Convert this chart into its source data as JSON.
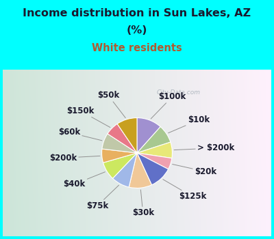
{
  "title_line1": "Income distribution in Sun Lakes, AZ",
  "title_line2": "(%)",
  "subtitle": "White residents",
  "title_color": "#1a1a2e",
  "subtitle_color": "#b05a2f",
  "bg_top_color": "#00FFFF",
  "watermark": "City-Data.com",
  "slices": [
    {
      "label": "$100k",
      "value": 11,
      "color": "#a090d0"
    },
    {
      "label": "$10k",
      "value": 8,
      "color": "#a8c890"
    },
    {
      "label": "> $200k",
      "value": 7,
      "color": "#e8e878"
    },
    {
      "label": "$20k",
      "value": 5,
      "color": "#f0a0b0"
    },
    {
      "label": "$125k",
      "value": 10,
      "color": "#6070c8"
    },
    {
      "label": "$30k",
      "value": 10,
      "color": "#f0c898"
    },
    {
      "label": "$75k",
      "value": 8,
      "color": "#a0b8e8"
    },
    {
      "label": "$40k",
      "value": 8,
      "color": "#cce860"
    },
    {
      "label": "$200k",
      "value": 6,
      "color": "#e8b060"
    },
    {
      "label": "$60k",
      "value": 7,
      "color": "#c0c8a8"
    },
    {
      "label": "$150k",
      "value": 6,
      "color": "#e87888"
    },
    {
      "label": "$50k",
      "value": 9,
      "color": "#c8a020"
    }
  ],
  "label_fontsize": 8.5,
  "label_color": "#1a1a2e",
  "startangle": 90
}
